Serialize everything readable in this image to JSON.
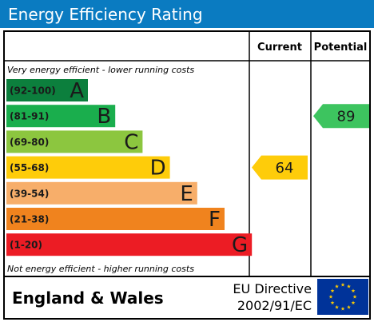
{
  "header": {
    "title": "Energy Efficiency Rating"
  },
  "columns": {
    "current": "Current",
    "potential": "Potential"
  },
  "scale_notes": {
    "top": "Very energy efficient - lower running costs",
    "bottom": "Not energy efficient - higher running costs"
  },
  "footer": {
    "region": "England & Wales",
    "directive_line1": "EU Directive",
    "directive_line2": "2002/91/EC",
    "flag_icon": "eu-flag-icon"
  },
  "chart_data": {
    "type": "bar",
    "bands": [
      {
        "range": "(92-100)",
        "letter": "A",
        "color": "#0c7f3d",
        "min": 92,
        "max": 100
      },
      {
        "range": "(81-91)",
        "letter": "B",
        "color": "#1aae4d",
        "min": 81,
        "max": 91
      },
      {
        "range": "(69-80)",
        "letter": "C",
        "color": "#8cc63f",
        "min": 69,
        "max": 80
      },
      {
        "range": "(55-68)",
        "letter": "D",
        "color": "#fecc0a",
        "min": 55,
        "max": 68
      },
      {
        "range": "(39-54)",
        "letter": "E",
        "color": "#f7ae6a",
        "min": 39,
        "max": 54
      },
      {
        "range": "(21-38)",
        "letter": "F",
        "color": "#f0831e",
        "min": 21,
        "max": 38
      },
      {
        "range": "(1-20)",
        "letter": "G",
        "color": "#ec1c24",
        "min": 1,
        "max": 20
      }
    ],
    "current": {
      "value": 64,
      "color": "#fecc0a"
    },
    "potential": {
      "value": 89,
      "color": "#3dc45f"
    }
  }
}
